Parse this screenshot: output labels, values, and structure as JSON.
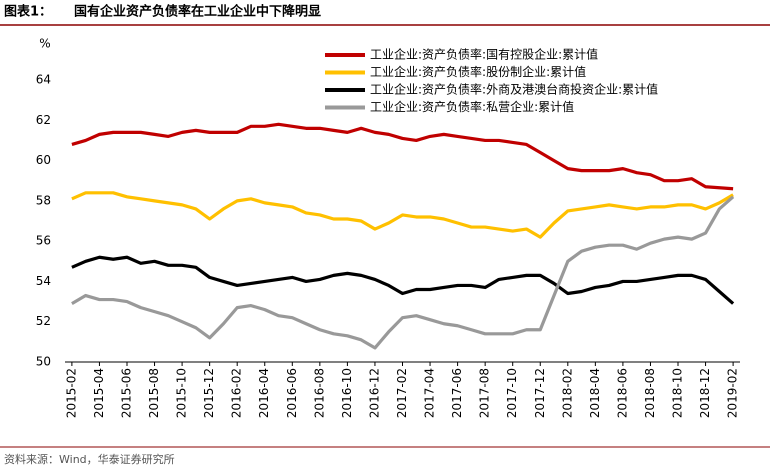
{
  "chart_data": {
    "type": "line",
    "figure_label": "图表1：",
    "title": "国有企业资产负债率在工业企业中下降明显",
    "y_unit": "%",
    "source": "资料来源：Wind，华泰证券研究所",
    "categories": [
      "2015-02",
      null,
      "2015-04",
      null,
      "2015-06",
      null,
      "2015-08",
      null,
      "2015-10",
      null,
      "2015-12",
      null,
      "2016-02",
      null,
      "2016-04",
      null,
      "2016-06",
      null,
      "2016-08",
      null,
      "2016-10",
      null,
      "2016-12",
      null,
      "2017-02",
      null,
      "2017-04",
      null,
      "2017-06",
      null,
      "2017-08",
      null,
      "2017-10",
      null,
      "2017-12",
      null,
      "2018-02",
      null,
      "2018-04",
      null,
      "2018-06",
      null,
      "2018-08",
      null,
      "2018-10",
      null,
      "2018-12",
      null,
      "2019-02"
    ],
    "series": [
      {
        "name": "工业企业:资产负债率:国有控股企业:累计值",
        "color": "#c00000",
        "values": [
          60.8,
          61.0,
          61.3,
          61.4,
          61.4,
          61.4,
          61.3,
          61.2,
          61.4,
          61.5,
          61.4,
          61.4,
          61.4,
          61.7,
          61.7,
          61.8,
          61.7,
          61.6,
          61.6,
          61.5,
          61.4,
          61.6,
          61.4,
          61.3,
          61.1,
          61.0,
          61.2,
          61.3,
          61.2,
          61.1,
          61.0,
          61.0,
          60.9,
          60.8,
          60.4,
          60.0,
          59.6,
          59.5,
          59.5,
          59.5,
          59.6,
          59.4,
          59.3,
          59.0,
          59.0,
          59.1,
          58.7,
          58.65,
          58.6
        ]
      },
      {
        "name": "工业企业:资产负债率:股份制企业:累计值",
        "color": "#ffc000",
        "values": [
          58.1,
          58.4,
          58.4,
          58.4,
          58.2,
          58.1,
          58.0,
          57.9,
          57.8,
          57.6,
          57.1,
          57.6,
          58.0,
          58.1,
          57.9,
          57.8,
          57.7,
          57.4,
          57.3,
          57.1,
          57.1,
          57.0,
          56.6,
          56.9,
          57.3,
          57.2,
          57.2,
          57.1,
          56.9,
          56.7,
          56.7,
          56.6,
          56.5,
          56.6,
          56.2,
          56.9,
          57.5,
          57.6,
          57.7,
          57.8,
          57.7,
          57.6,
          57.7,
          57.7,
          57.8,
          57.8,
          57.6,
          57.9,
          58.3
        ]
      },
      {
        "name": "工业企业:资产负债率:外商及港澳台商投资企业:累计值",
        "color": "#000000",
        "values": [
          54.7,
          55.0,
          55.2,
          55.1,
          55.2,
          54.9,
          55.0,
          54.8,
          54.8,
          54.7,
          54.2,
          54.0,
          53.8,
          53.9,
          54.0,
          54.1,
          54.2,
          54.0,
          54.1,
          54.3,
          54.4,
          54.3,
          54.1,
          53.8,
          53.4,
          53.6,
          53.6,
          53.7,
          53.8,
          53.8,
          53.7,
          54.1,
          54.2,
          54.3,
          54.3,
          53.9,
          53.4,
          53.5,
          53.7,
          53.8,
          54.0,
          54.0,
          54.1,
          54.2,
          54.3,
          54.3,
          54.1,
          53.5,
          52.9
        ]
      },
      {
        "name": "工业企业:资产负债率:私营企业:累计值",
        "color": "#999999",
        "values": [
          52.9,
          53.3,
          53.1,
          53.1,
          53.0,
          52.7,
          52.5,
          52.3,
          52.0,
          51.7,
          51.2,
          51.9,
          52.7,
          52.8,
          52.6,
          52.3,
          52.2,
          51.9,
          51.6,
          51.4,
          51.3,
          51.1,
          50.7,
          51.5,
          52.2,
          52.3,
          52.1,
          51.9,
          51.8,
          51.6,
          51.4,
          51.4,
          51.4,
          51.6,
          51.6,
          53.3,
          55.0,
          55.5,
          55.7,
          55.8,
          55.8,
          55.6,
          55.9,
          56.1,
          56.2,
          56.1,
          56.4,
          57.6,
          58.2
        ]
      }
    ],
    "ylim": [
      50,
      64
    ],
    "yticks": [
      50,
      52,
      54,
      56,
      58,
      60,
      62,
      64
    ]
  }
}
